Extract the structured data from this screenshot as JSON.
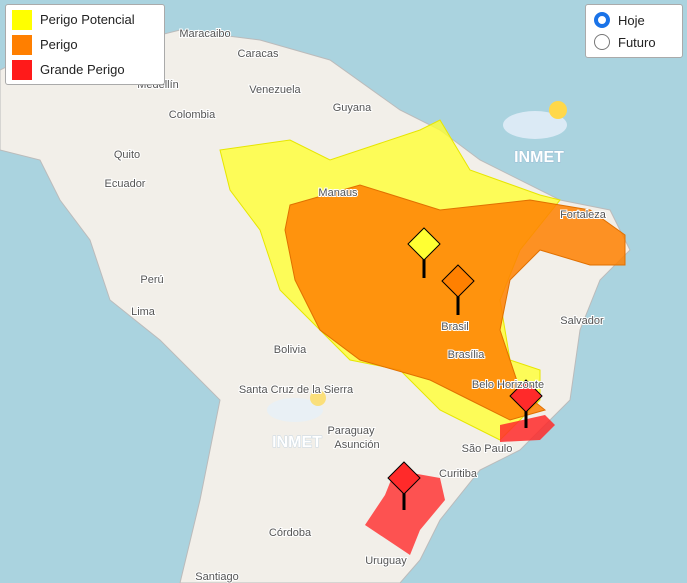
{
  "legend": {
    "items": [
      "Perigo Potencial",
      "Perigo",
      "Grande Perigo"
    ]
  },
  "period": {
    "options": [
      "Hoje",
      "Futuro"
    ]
  },
  "logo": [
    "INMET",
    "INMET"
  ],
  "map": {
    "labels": [
      "Maracaibo",
      "Caracas",
      "Medellín",
      "Venezuela",
      "Guyana",
      "Colombia",
      "Quito",
      "Ecuador",
      "Manaus",
      "Fortaleza",
      "Perú",
      "Lima",
      "Bolivia",
      "Salvador",
      "Brasil",
      "Brasília",
      "Belo Horizonte",
      "Santa Cruz de la Sierra",
      "Paraguay",
      "Asunción",
      "São Paulo",
      "Curitiba",
      "Córdoba",
      "Uruguay",
      "Santiago"
    ]
  }
}
